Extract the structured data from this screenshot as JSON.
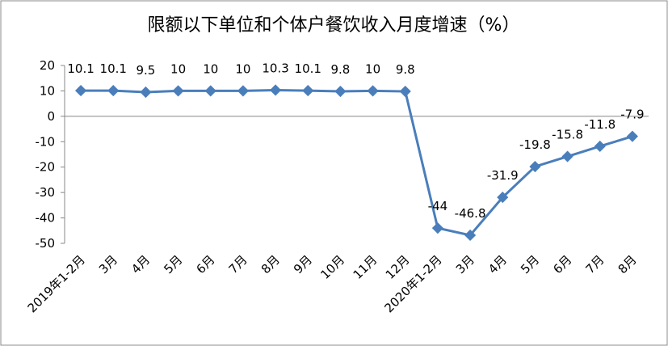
{
  "chart_data": {
    "type": "line",
    "title": "限额以下单位和个体户餐饮收入月度增速（%）",
    "categories": [
      "2019年1-2月",
      "3月",
      "4月",
      "5月",
      "6月",
      "7月",
      "8月",
      "9月",
      "10月",
      "11月",
      "12月",
      "2020年1-2月",
      "3月",
      "4月",
      "5月",
      "6月",
      "7月",
      "8月"
    ],
    "series": [
      {
        "color": "#4a7ebb",
        "values": [
          10.1,
          10.1,
          9.5,
          10,
          10,
          10,
          10.3,
          10.1,
          9.8,
          10,
          9.8,
          -44,
          -46.8,
          -31.9,
          -19.8,
          -15.8,
          -11.8,
          -7.9
        ]
      }
    ],
    "ylim": [
      -50,
      20
    ],
    "yticks": [
      -50,
      -40,
      -30,
      -20,
      -10,
      0,
      10,
      20
    ],
    "grid": false
  }
}
